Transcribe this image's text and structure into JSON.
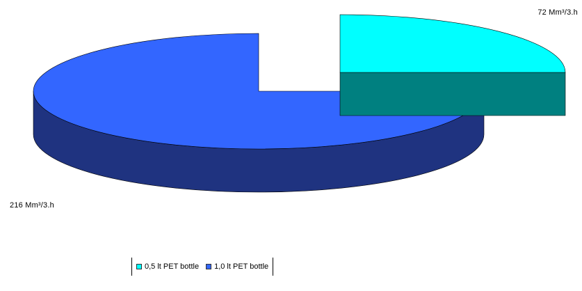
{
  "chart_data": {
    "type": "pie",
    "title": "",
    "legend_position": "bottom",
    "slices": [
      {
        "name": "0,5 lt PET bottle",
        "value": 72,
        "label": "72 Mm³/3.h",
        "top_color": "#00ffff",
        "side_color": "#008080"
      },
      {
        "name": "1,0 lt PET bottle",
        "value": 216,
        "label": "216 Mm³/3.h",
        "top_color": "#3366ff",
        "side_color": "#1f3380"
      }
    ]
  }
}
